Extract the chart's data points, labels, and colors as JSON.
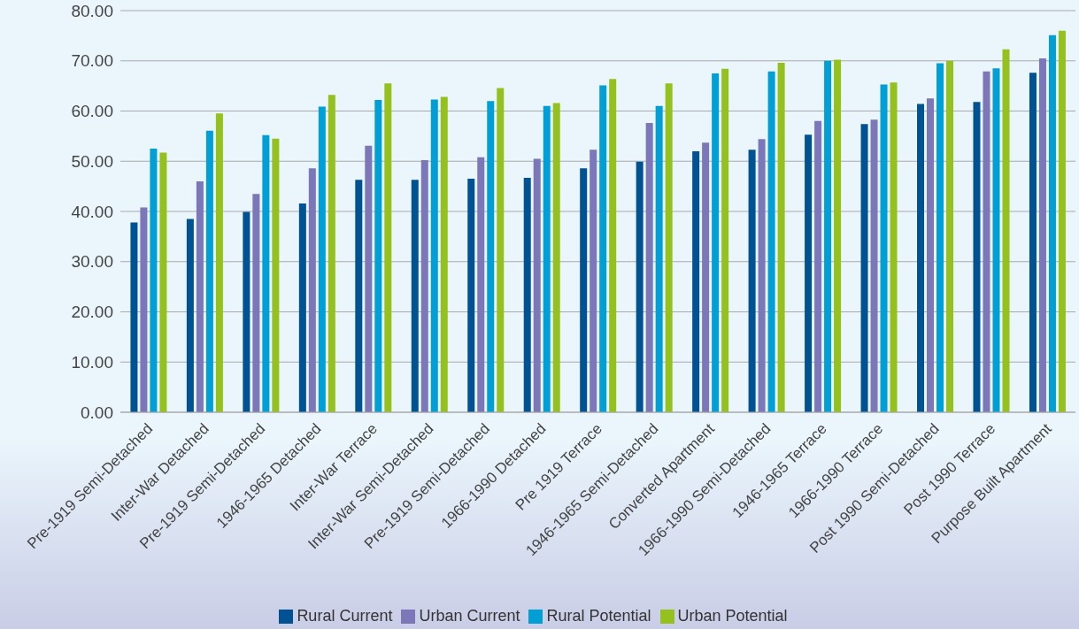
{
  "chart_data": {
    "type": "bar",
    "categories": [
      "Pre-1919 Semi-Detached",
      "Inter-War Detached",
      "Pre-1919 Semi-Detached",
      "1946-1965 Detached",
      "Inter-War Terrace",
      "Inter-War Semi-Detached",
      "Pre-1919 Semi-Detached",
      "1966-1990 Detached",
      "Pre 1919 Terrace",
      "1946-1965 Semi-Detached",
      "Converted Apartment",
      "1966-1990 Semi-Detached",
      "1946-1965 Terrace",
      "1966-1990 Terrace",
      "Post 1990 Semi-Detached",
      "Post 1990 Terrace",
      "Purpose Built Apartment"
    ],
    "series": [
      {
        "name": "Rural Current",
        "color": "#005293",
        "values": [
          37.8,
          38.5,
          39.9,
          41.6,
          46.3,
          46.3,
          46.5,
          46.7,
          48.6,
          49.9,
          52.0,
          52.3,
          55.3,
          57.4,
          61.4,
          61.8,
          67.6
        ]
      },
      {
        "name": "Urban Current",
        "color": "#7b77b8",
        "values": [
          40.8,
          46.0,
          43.5,
          48.6,
          53.1,
          50.2,
          50.8,
          50.5,
          52.3,
          57.6,
          53.7,
          54.4,
          58.0,
          58.3,
          62.5,
          67.9,
          70.5
        ]
      },
      {
        "name": "Rural Potential",
        "color": "#009fd6",
        "values": [
          52.5,
          56.1,
          55.2,
          60.9,
          62.2,
          62.3,
          62.0,
          61.0,
          65.1,
          61.0,
          67.5,
          67.9,
          70.0,
          65.3,
          69.5,
          68.5,
          75.1
        ]
      },
      {
        "name": "Urban Potential",
        "color": "#95c11f",
        "values": [
          51.7,
          59.5,
          54.5,
          63.2,
          65.5,
          62.8,
          64.6,
          61.6,
          66.4,
          65.5,
          68.4,
          69.6,
          70.2,
          65.7,
          70.0,
          72.3,
          76.0
        ]
      }
    ],
    "ylim": [
      0,
      80
    ],
    "yticks": [
      {
        "value": 0,
        "label": "0.00"
      },
      {
        "value": 10,
        "label": "10.00"
      },
      {
        "value": 20,
        "label": "20.00"
      },
      {
        "value": 30,
        "label": "30.00"
      },
      {
        "value": 40,
        "label": "40.00"
      },
      {
        "value": 50,
        "label": "50.00"
      },
      {
        "value": 60,
        "label": "60.00"
      },
      {
        "value": 70,
        "label": "70.00"
      },
      {
        "value": 80,
        "label": "80.00"
      }
    ],
    "grid": "y",
    "legend": "bottom"
  }
}
